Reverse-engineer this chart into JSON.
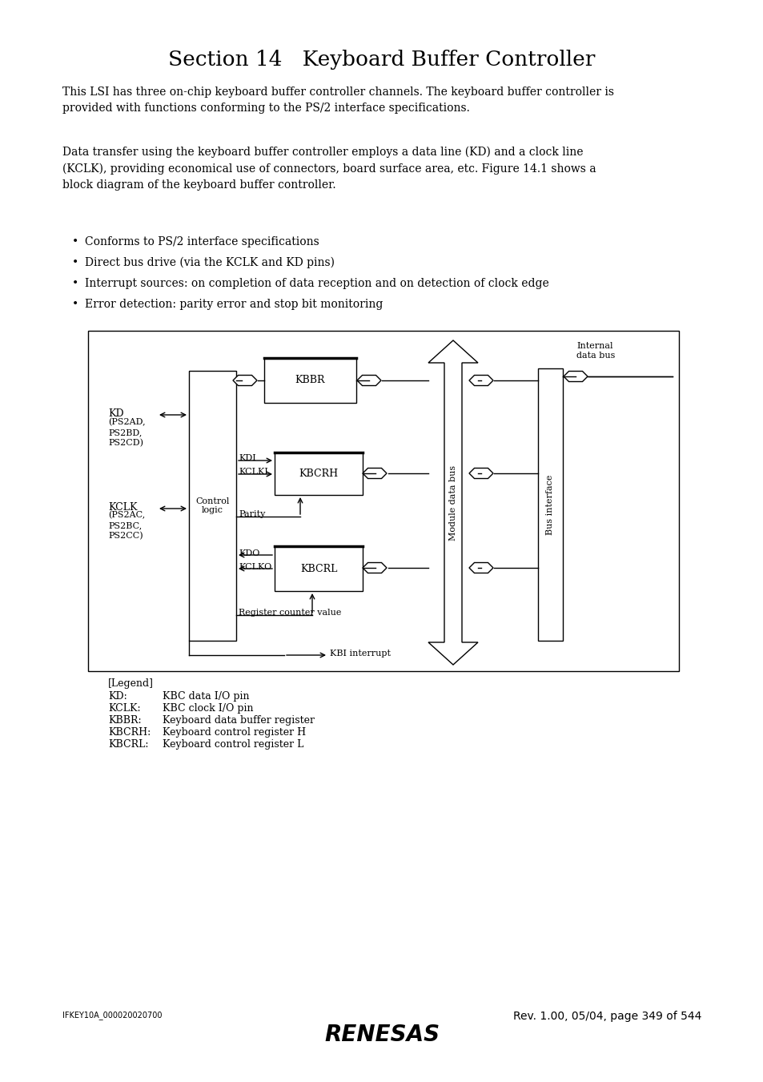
{
  "title": "Section 14   Keyboard Buffer Controller",
  "para1": "This LSI has three on-chip keyboard buffer controller channels. The keyboard buffer controller is\nprovided with functions conforming to the PS/2 interface specifications.",
  "para2": "Data transfer using the keyboard buffer controller employs a data line (KD) and a clock line\n(KCLK), providing economical use of connectors, board surface area, etc. Figure 14.1 shows a\nblock diagram of the keyboard buffer controller.",
  "bullets": [
    "Conforms to PS/2 interface specifications",
    "Direct bus drive (via the KCLK and KD pins)",
    "Interrupt sources: on completion of data reception and on detection of clock edge",
    "Error detection: parity error and stop bit monitoring"
  ],
  "footer_left": "IFKEY10A_000020020700",
  "footer_right": "Rev. 1.00, 05/04, page 349 of 544",
  "footer_logo": "RENESAS",
  "bg_color": "#ffffff",
  "text_color": "#000000"
}
